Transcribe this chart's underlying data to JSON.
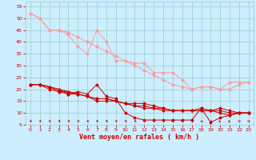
{
  "bg_color": "#cceeff",
  "grid_color": "#99cccc",
  "line_color_dark": "#cc0000",
  "line_color_light": "#ff9999",
  "xlabel": "Vent moyen/en rafales ( km/h )",
  "xlabel_color": "#cc0000",
  "xlabel_fontsize": 6,
  "tick_color": "#cc0000",
  "xlim": [
    -0.5,
    23.5
  ],
  "ylim": [
    5,
    57
  ],
  "yticks": [
    5,
    10,
    15,
    20,
    25,
    30,
    35,
    40,
    45,
    50,
    55
  ],
  "xticks": [
    0,
    1,
    2,
    3,
    4,
    5,
    6,
    7,
    8,
    9,
    10,
    11,
    12,
    13,
    14,
    15,
    16,
    17,
    18,
    19,
    20,
    21,
    22,
    23
  ],
  "series_dark": [
    [
      0,
      22,
      1,
      22,
      2,
      21,
      3,
      20,
      4,
      18,
      5,
      19,
      6,
      18,
      7,
      22,
      8,
      17,
      9,
      16,
      10,
      10,
      11,
      8,
      12,
      7,
      13,
      7,
      14,
      7,
      15,
      7,
      16,
      7,
      17,
      7,
      18,
      12,
      19,
      6,
      20,
      8,
      21,
      9,
      22,
      10,
      23,
      10
    ],
    [
      0,
      22,
      1,
      22,
      2,
      20,
      3,
      19,
      4,
      18,
      5,
      18,
      6,
      17,
      7,
      15,
      8,
      15,
      9,
      15,
      10,
      14,
      11,
      14,
      12,
      14,
      13,
      13,
      14,
      12,
      15,
      11,
      16,
      11,
      17,
      11,
      18,
      12,
      19,
      11,
      20,
      10,
      21,
      9,
      22,
      10,
      23,
      10
    ],
    [
      0,
      22,
      1,
      22,
      2,
      21,
      3,
      20,
      4,
      19,
      5,
      18,
      6,
      17,
      7,
      16,
      8,
      16,
      9,
      15,
      10,
      14,
      11,
      13,
      12,
      13,
      13,
      12,
      14,
      12,
      15,
      11,
      16,
      11,
      17,
      11,
      18,
      11,
      19,
      11,
      20,
      11,
      21,
      10,
      22,
      10,
      23,
      10
    ],
    [
      0,
      22,
      1,
      22,
      2,
      21,
      3,
      19,
      4,
      19,
      5,
      18,
      6,
      17,
      7,
      16,
      8,
      16,
      9,
      15,
      10,
      14,
      11,
      13,
      12,
      12,
      13,
      12,
      14,
      11,
      15,
      11,
      16,
      11,
      17,
      11,
      18,
      11,
      19,
      11,
      20,
      12,
      21,
      11,
      22,
      10,
      23,
      10
    ]
  ],
  "series_light": [
    [
      0,
      52,
      1,
      50,
      2,
      45,
      3,
      45,
      4,
      43,
      5,
      38,
      6,
      35,
      7,
      45,
      8,
      40,
      9,
      32,
      10,
      32,
      11,
      31,
      12,
      31,
      13,
      27,
      14,
      27,
      15,
      27,
      16,
      24,
      17,
      20,
      18,
      21,
      19,
      21,
      20,
      20,
      21,
      23,
      22,
      23,
      23,
      23
    ],
    [
      0,
      52,
      1,
      50,
      2,
      45,
      3,
      45,
      4,
      44,
      5,
      42,
      6,
      40,
      7,
      38,
      8,
      36,
      9,
      34,
      10,
      32,
      11,
      30,
      12,
      28,
      13,
      26,
      14,
      24,
      15,
      22,
      16,
      21,
      17,
      20,
      18,
      21,
      19,
      21,
      20,
      20,
      21,
      20,
      22,
      22,
      23,
      23
    ]
  ]
}
